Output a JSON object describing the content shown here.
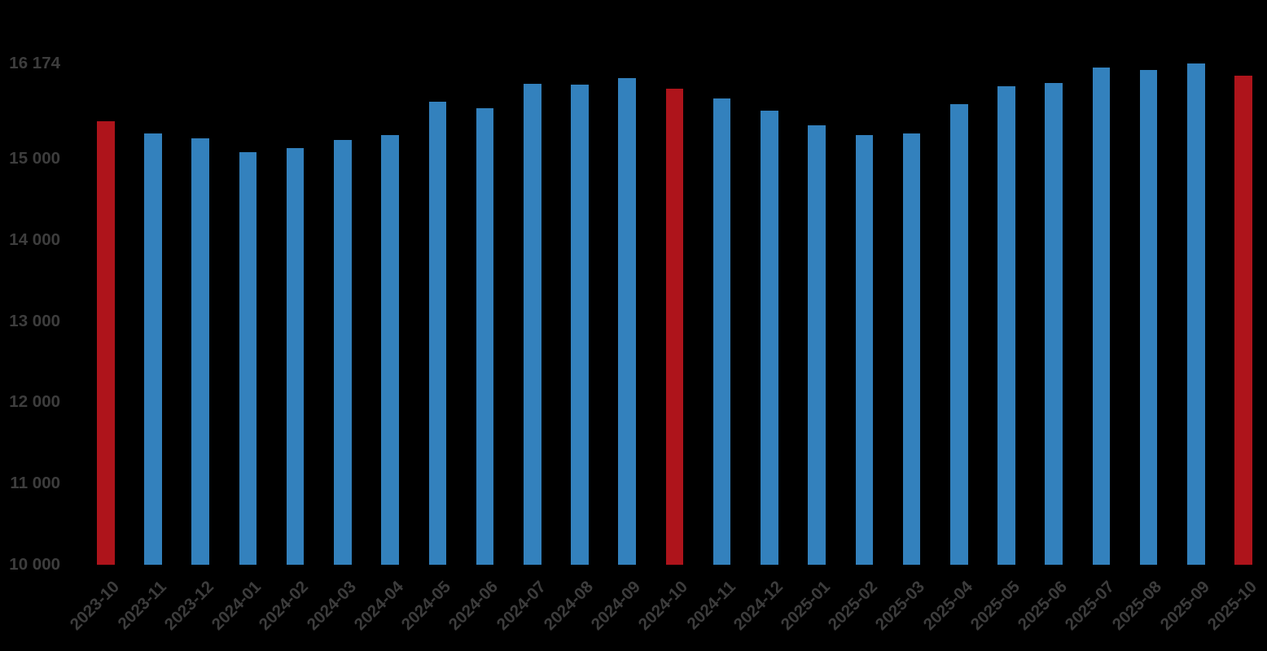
{
  "chart_data": {
    "type": "bar",
    "title": "",
    "xlabel": "",
    "ylabel": "",
    "categories": [
      "2023-10",
      "2023-11",
      "2023-12",
      "2024-01",
      "2024-02",
      "2024-03",
      "2024-04",
      "2024-05",
      "2024-06",
      "2024-07",
      "2024-08",
      "2024-09",
      "2024-10",
      "2024-11",
      "2024-12",
      "2025-01",
      "2025-02",
      "2025-03",
      "2025-04",
      "2025-05",
      "2025-06",
      "2025-07",
      "2025-08",
      "2025-09",
      "2025-10"
    ],
    "values": [
      15460,
      15310,
      15250,
      15080,
      15130,
      15230,
      15290,
      15700,
      15620,
      15920,
      15910,
      15990,
      15860,
      15740,
      15590,
      15410,
      15290,
      15310,
      15670,
      15890,
      15930,
      16120,
      16090,
      16174,
      16020
    ],
    "highlighted_indices": [
      0,
      12,
      24
    ],
    "ylim": [
      10000,
      16174
    ],
    "yticks": [
      {
        "value": 16174,
        "label": "16 174"
      },
      {
        "value": 15000,
        "label": "15 000"
      },
      {
        "value": 14000,
        "label": "14 000"
      },
      {
        "value": 13000,
        "label": "13 000"
      },
      {
        "value": 12000,
        "label": "12 000"
      },
      {
        "value": 11000,
        "label": "11 000"
      },
      {
        "value": 10000,
        "label": "10 000"
      }
    ],
    "grid": false,
    "legend": null,
    "colors": {
      "bar": "#3381bd",
      "highlighted_bar": "#ae141b",
      "tick_label": "#3d3d3d",
      "background": "#000000"
    }
  }
}
